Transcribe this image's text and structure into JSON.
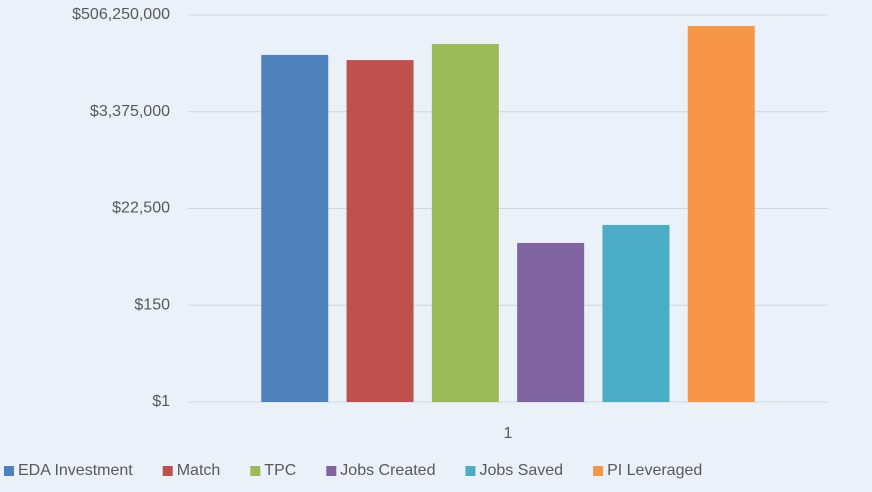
{
  "chart_data": {
    "type": "bar",
    "categories": [
      "1"
    ],
    "series": [
      {
        "name": "EDA Investment",
        "color": "#4f81bd",
        "values": [
          64000000
        ]
      },
      {
        "name": "Match",
        "color": "#c0504d",
        "values": [
          49000000
        ]
      },
      {
        "name": "TPC",
        "color": "#9bbb59",
        "values": [
          113000000
        ]
      },
      {
        "name": "Jobs Created",
        "color": "#8064a2",
        "values": [
          3770
        ]
      },
      {
        "name": "Jobs Saved",
        "color": "#4bacc6",
        "values": [
          9600
        ]
      },
      {
        "name": "PI Leveraged",
        "color": "#f79646",
        "values": [
          287000000
        ]
      }
    ],
    "ylim": [
      1,
      506250000
    ],
    "log_scale": true,
    "log_base": 150,
    "yticks": [
      {
        "value": 1,
        "label": "$1"
      },
      {
        "value": 150,
        "label": "$150"
      },
      {
        "value": 22500,
        "label": "$22,500"
      },
      {
        "value": 3375000,
        "label": "$3,375,000"
      },
      {
        "value": 506250000,
        "label": "$506,250,000"
      }
    ],
    "grid": true,
    "legend": "bottom"
  }
}
